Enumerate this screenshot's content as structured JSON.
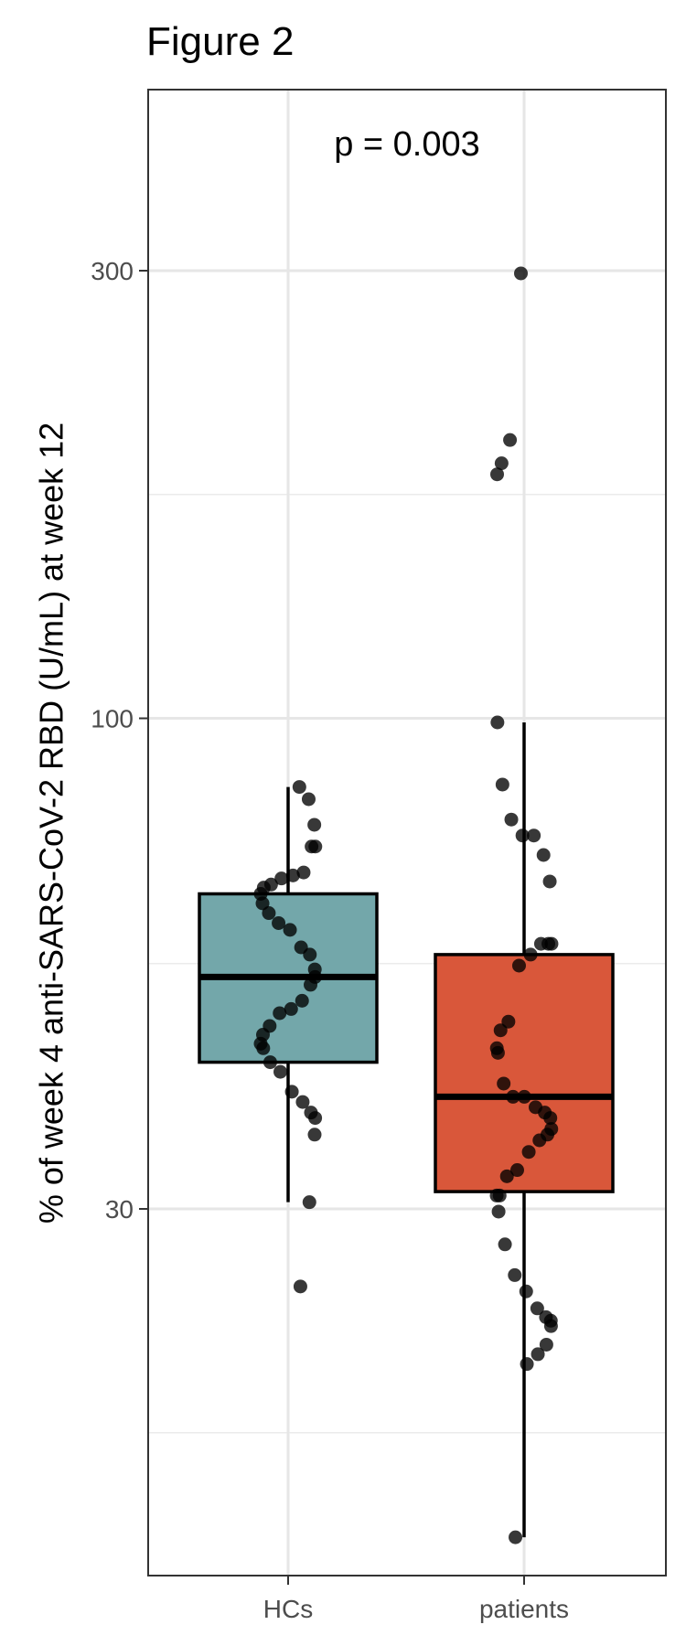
{
  "chart_data": {
    "type": "box",
    "title": "Figure 2",
    "annotation": "p = 0.003",
    "xlabel": "",
    "ylabel": "% of week 4 anti-SARS-CoV-2 RBD (U/mL) at week 12",
    "y_scale": "log10",
    "ylim": [
      12,
      460
    ],
    "y_major_ticks": [
      30,
      100,
      300
    ],
    "y_minor_ticks": [
      17.32,
      54.77,
      173.2
    ],
    "grid": true,
    "legend": "none",
    "categories": [
      "HCs",
      "patients"
    ],
    "colors": {
      "HCs": "#73a7aa",
      "patients": "#d9573a"
    },
    "boxes": [
      {
        "name": "HCs",
        "whisker_low": 30.5,
        "q1": 43,
        "median": 53,
        "q3": 65,
        "whisker_high": 84.5
      },
      {
        "name": "patients",
        "whisker_low": 13.4,
        "q1": 31.3,
        "median": 39.5,
        "q3": 56,
        "whisker_high": 99
      }
    ],
    "points": [
      {
        "group": "HCs",
        "values": [
          84.5,
          82,
          77,
          73,
          73,
          68.5,
          68,
          67.5,
          66.5,
          66,
          65,
          63.5,
          62,
          60.5,
          59.5,
          57,
          56,
          54,
          53,
          52,
          50,
          49,
          48.5,
          47,
          46,
          45,
          44.5,
          43,
          42,
          40,
          39,
          38,
          37.5,
          36,
          30.5,
          24.8
        ]
      },
      {
        "group": "patients",
        "values": [
          298,
          198,
          187,
          182,
          99,
          85,
          78,
          75,
          75,
          71.5,
          67,
          57.5,
          57.5,
          57.5,
          56,
          54.5,
          47.5,
          46.5,
          44.5,
          44,
          40.8,
          39.5,
          39.5,
          38.5,
          38,
          37.5,
          36.5,
          36,
          35.5,
          34.5,
          33,
          32.5,
          31,
          31,
          29.8,
          27.5,
          25.5,
          24.5,
          23.5,
          23,
          22.8,
          22.5,
          21.5,
          21,
          20.5,
          13.4
        ]
      }
    ]
  }
}
